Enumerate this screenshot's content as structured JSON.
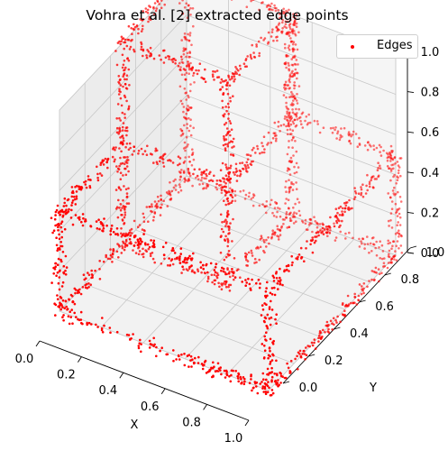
{
  "chart_data": {
    "type": "scatter",
    "title": "Vohra et al. [2] extracted edge points",
    "xlabel": "X",
    "ylabel": "Y",
    "zlabel": "",
    "xlim": [
      0,
      1
    ],
    "ylim": [
      0,
      1
    ],
    "zlim": [
      0,
      1
    ],
    "xticks": [
      "0.0",
      "0.2",
      "0.4",
      "0.6",
      "0.8",
      "1.0"
    ],
    "yticks": [
      "0.0",
      "0.2",
      "0.4",
      "0.6",
      "0.8",
      "1.0"
    ],
    "zticks": [
      "0.0",
      "0.2",
      "0.4",
      "0.6",
      "0.8",
      "1.0"
    ],
    "grid": true,
    "legend": {
      "position": "top-right",
      "entries": [
        "Edges"
      ]
    },
    "series": [
      {
        "name": "Edges",
        "color": "#ff0000",
        "marker": "point",
        "shape": "edges of an L-shaped solid",
        "vertices": [
          [
            0.0,
            0.0,
            0.0
          ],
          [
            1.0,
            0.0,
            0.0
          ],
          [
            1.0,
            1.0,
            0.0
          ],
          [
            0.5,
            1.0,
            0.0
          ],
          [
            0.5,
            0.5,
            0.0
          ],
          [
            0.0,
            0.5,
            0.0
          ],
          [
            0.0,
            0.0,
            0.5
          ],
          [
            1.0,
            0.0,
            0.5
          ],
          [
            1.0,
            1.0,
            0.5
          ],
          [
            0.5,
            1.0,
            0.5
          ],
          [
            0.5,
            0.5,
            0.5
          ],
          [
            0.0,
            0.5,
            0.5
          ],
          [
            0.5,
            0.5,
            1.0
          ],
          [
            0.0,
            0.5,
            1.0
          ],
          [
            0.0,
            1.0,
            1.0
          ],
          [
            0.5,
            1.0,
            1.0
          ],
          [
            0.0,
            1.0,
            0.0
          ]
        ],
        "edges": [
          [
            0,
            1
          ],
          [
            1,
            2
          ],
          [
            2,
            3
          ],
          [
            3,
            16
          ],
          [
            16,
            5
          ],
          [
            5,
            0
          ],
          [
            0,
            6
          ],
          [
            1,
            7
          ],
          [
            2,
            8
          ],
          [
            4,
            10
          ],
          [
            6,
            7
          ],
          [
            7,
            8
          ],
          [
            8,
            9
          ],
          [
            9,
            10
          ],
          [
            10,
            11
          ],
          [
            11,
            6
          ],
          [
            5,
            11
          ],
          [
            4,
            5
          ],
          [
            3,
            4
          ],
          [
            10,
            12
          ],
          [
            11,
            13
          ],
          [
            12,
            13
          ],
          [
            13,
            14
          ],
          [
            14,
            15
          ],
          [
            15,
            12
          ],
          [
            3,
            15
          ],
          [
            16,
            14
          ],
          [
            9,
            15
          ]
        ]
      }
    ]
  }
}
